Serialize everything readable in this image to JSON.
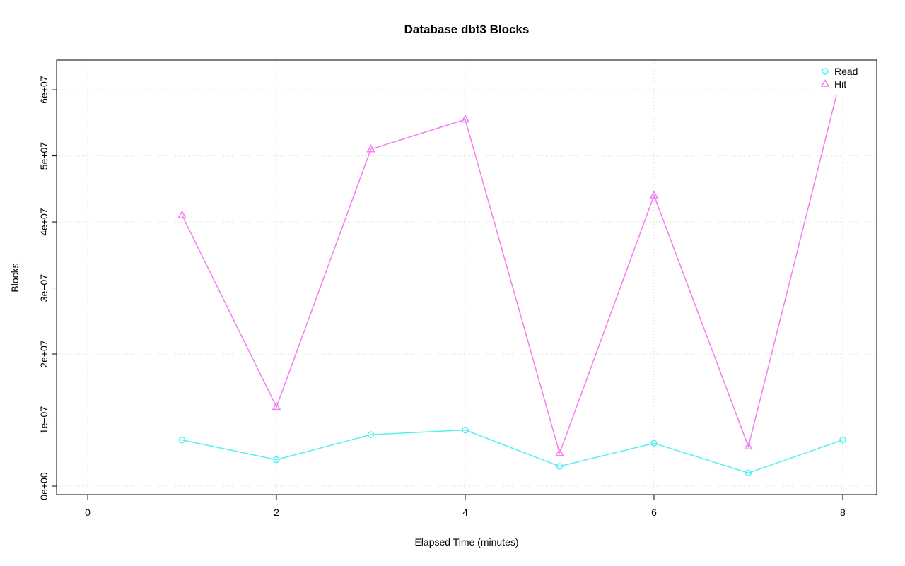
{
  "window": {
    "background": "#ffffff"
  },
  "chart_data": {
    "type": "line",
    "title": "Database dbt3 Blocks",
    "xlabel": "Elapsed Time (minutes)",
    "ylabel": "Blocks",
    "grid": true,
    "x": [
      1,
      2,
      3,
      4,
      5,
      6,
      7,
      8
    ],
    "series": [
      {
        "name": "Read",
        "marker": "circle",
        "color": "#55efef",
        "values": [
          7000000,
          4000000,
          7800000,
          8500000,
          3000000,
          6500000,
          2000000,
          7000000
        ]
      },
      {
        "name": "Hit",
        "marker": "triangle",
        "color": "#f47cf4",
        "values": [
          41000000,
          12000000,
          51000000,
          55500000,
          5000000,
          44000000,
          6000000,
          63000000
        ]
      }
    ],
    "xlim": [
      -0.33,
      8.36
    ],
    "ylim": [
      -1280000,
      64500000
    ],
    "xticks": {
      "values": [
        0,
        2,
        4,
        6,
        8
      ],
      "labels": [
        "0",
        "2",
        "4",
        "6",
        "8"
      ]
    },
    "yticks": {
      "values": [
        0,
        10000000,
        20000000,
        30000000,
        40000000,
        50000000,
        60000000
      ],
      "labels": [
        "0e+00",
        "1e+07",
        "2e+07",
        "3e+07",
        "4e+07",
        "5e+07",
        "6e+07"
      ]
    },
    "legend": {
      "position": "top-right",
      "items": [
        {
          "label": "Read",
          "marker": "circle",
          "color": "#55efef"
        },
        {
          "label": "Hit",
          "marker": "triangle",
          "color": "#f47cf4"
        }
      ]
    }
  }
}
